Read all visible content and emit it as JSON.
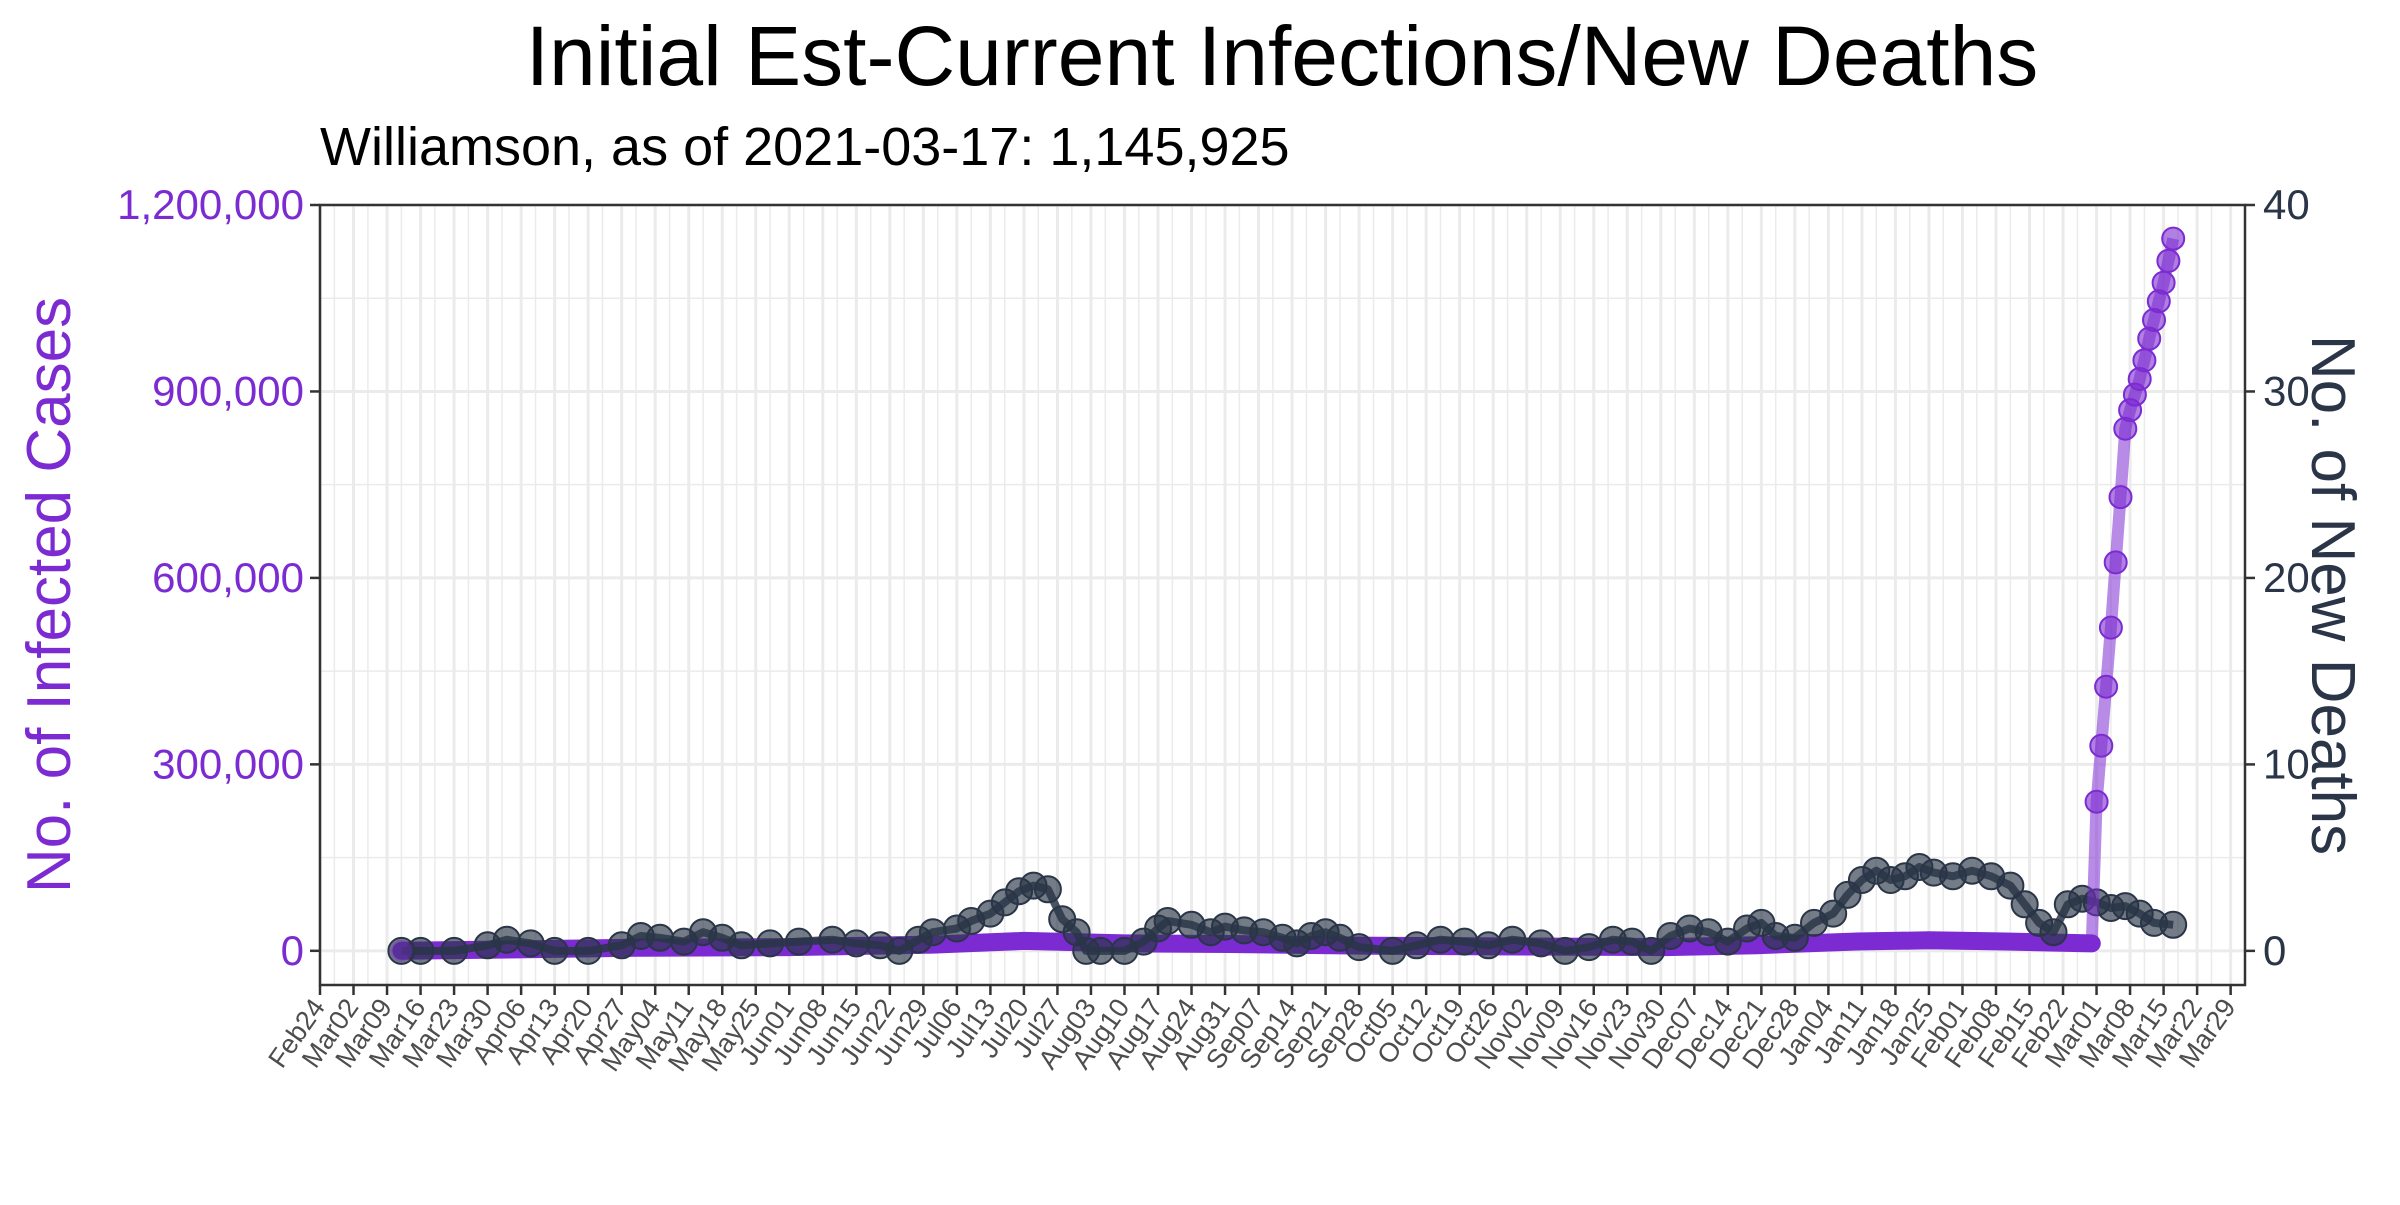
{
  "chart_data": {
    "type": "line",
    "title": "Initial Est-Current Infections/New Deaths",
    "subtitle": "Williamson, as of 2021-03-17:  1,145,925",
    "y_left_label": "No. of Infected Cases",
    "y_right_label": "No. of New Deaths",
    "y_left_ticks": [
      0,
      300000,
      600000,
      900000,
      1200000
    ],
    "y_left_tick_labels": [
      "0",
      "300,000",
      "600,000",
      "900,000",
      "1,200,000"
    ],
    "y_left_range": [
      -55000,
      1200000
    ],
    "y_right_ticks": [
      0,
      10,
      20,
      30,
      40
    ],
    "y_right_tick_labels": [
      "0",
      "10",
      "20",
      "30",
      "40"
    ],
    "y_right_range": [
      -1.83,
      40
    ],
    "x_range": [
      "2020-02-24",
      "2021-04-01"
    ],
    "x_tick_labels": [
      "Feb24",
      "Mar02",
      "Mar09",
      "Mar16",
      "Mar23",
      "Mar30",
      "Apr06",
      "Apr13",
      "Apr20",
      "Apr27",
      "May04",
      "May11",
      "May18",
      "May25",
      "Jun01",
      "Jun08",
      "Jun15",
      "Jun22",
      "Jun29",
      "Jul06",
      "Jul13",
      "Jul20",
      "Jul27",
      "Aug03",
      "Aug10",
      "Aug17",
      "Aug24",
      "Aug31",
      "Sep07",
      "Sep14",
      "Sep21",
      "Sep28",
      "Oct05",
      "Oct12",
      "Oct19",
      "Oct26",
      "Nov02",
      "Nov09",
      "Nov16",
      "Nov23",
      "Nov30",
      "Dec07",
      "Dec14",
      "Dec21",
      "Dec28",
      "Jan04",
      "Jan11",
      "Jan18",
      "Jan25",
      "Feb01",
      "Feb08",
      "Feb15",
      "Feb22",
      "Mar01",
      "Mar08",
      "Mar15",
      "Mar22",
      "Mar29"
    ],
    "x_tick_dates": [
      "2020-02-24",
      "2020-03-02",
      "2020-03-09",
      "2020-03-16",
      "2020-03-23",
      "2020-03-30",
      "2020-04-06",
      "2020-04-13",
      "2020-04-20",
      "2020-04-27",
      "2020-05-04",
      "2020-05-11",
      "2020-05-18",
      "2020-05-25",
      "2020-06-01",
      "2020-06-08",
      "2020-06-15",
      "2020-06-22",
      "2020-06-29",
      "2020-07-06",
      "2020-07-13",
      "2020-07-20",
      "2020-07-27",
      "2020-08-03",
      "2020-08-10",
      "2020-08-17",
      "2020-08-24",
      "2020-08-31",
      "2020-09-07",
      "2020-09-14",
      "2020-09-21",
      "2020-09-28",
      "2020-10-05",
      "2020-10-12",
      "2020-10-19",
      "2020-10-26",
      "2020-11-02",
      "2020-11-09",
      "2020-11-16",
      "2020-11-23",
      "2020-11-30",
      "2020-12-07",
      "2020-12-14",
      "2020-12-21",
      "2020-12-28",
      "2021-01-04",
      "2021-01-11",
      "2021-01-18",
      "2021-01-25",
      "2021-02-01",
      "2021-02-08",
      "2021-02-15",
      "2021-02-22",
      "2021-03-01",
      "2021-03-08",
      "2021-03-15",
      "2021-03-22",
      "2021-03-29"
    ],
    "grid": true,
    "colors": {
      "infections": "#7b2bd1",
      "deaths": "#2a3547",
      "axis": "#333333",
      "grid": "#ebebeb"
    },
    "series": [
      {
        "axis": "left",
        "style": "thick-line",
        "points": [
          [
            "2020-03-12",
            0
          ],
          [
            "2020-04-01",
            2000
          ],
          [
            "2020-05-01",
            5000
          ],
          [
            "2020-06-01",
            6000
          ],
          [
            "2020-07-01",
            10000
          ],
          [
            "2020-07-20",
            16000
          ],
          [
            "2020-08-10",
            12000
          ],
          [
            "2020-09-01",
            11000
          ],
          [
            "2020-10-01",
            8000
          ],
          [
            "2020-11-01",
            7000
          ],
          [
            "2020-12-01",
            6000
          ],
          [
            "2020-12-20",
            9000
          ],
          [
            "2021-01-10",
            15000
          ],
          [
            "2021-01-25",
            17000
          ],
          [
            "2021-02-10",
            15000
          ],
          [
            "2021-02-28",
            12000
          ]
        ]
      },
      {
        "axis": "left",
        "style": "line-points",
        "points": [
          [
            "2021-02-28",
            12000
          ],
          [
            "2021-03-01",
            240000
          ],
          [
            "2021-03-02",
            330000
          ],
          [
            "2021-03-03",
            425000
          ],
          [
            "2021-03-04",
            520000
          ],
          [
            "2021-03-05",
            625000
          ],
          [
            "2021-03-06",
            730000
          ],
          [
            "2021-03-07",
            840000
          ],
          [
            "2021-03-08",
            870000
          ],
          [
            "2021-03-09",
            895000
          ],
          [
            "2021-03-10",
            920000
          ],
          [
            "2021-03-11",
            950000
          ],
          [
            "2021-03-12",
            985000
          ],
          [
            "2021-03-13",
            1015000
          ],
          [
            "2021-03-14",
            1045000
          ],
          [
            "2021-03-15",
            1075000
          ],
          [
            "2021-03-16",
            1110000
          ],
          [
            "2021-03-17",
            1145925
          ]
        ]
      },
      {
        "axis": "right",
        "style": "line-points",
        "points": [
          [
            "2020-03-12",
            0
          ],
          [
            "2020-03-16",
            0
          ],
          [
            "2020-03-23",
            0
          ],
          [
            "2020-03-30",
            0.3
          ],
          [
            "2020-04-03",
            0.6
          ],
          [
            "2020-04-08",
            0.4
          ],
          [
            "2020-04-13",
            0
          ],
          [
            "2020-04-20",
            0
          ],
          [
            "2020-04-27",
            0.3
          ],
          [
            "2020-05-01",
            0.8
          ],
          [
            "2020-05-05",
            0.7
          ],
          [
            "2020-05-10",
            0.5
          ],
          [
            "2020-05-14",
            1.0
          ],
          [
            "2020-05-18",
            0.7
          ],
          [
            "2020-05-22",
            0.3
          ],
          [
            "2020-05-28",
            0.4
          ],
          [
            "2020-06-03",
            0.5
          ],
          [
            "2020-06-10",
            0.6
          ],
          [
            "2020-06-15",
            0.4
          ],
          [
            "2020-06-20",
            0.3
          ],
          [
            "2020-06-24",
            0.0
          ],
          [
            "2020-06-28",
            0.6
          ],
          [
            "2020-07-01",
            1.0
          ],
          [
            "2020-07-06",
            1.2
          ],
          [
            "2020-07-09",
            1.6
          ],
          [
            "2020-07-13",
            2.0
          ],
          [
            "2020-07-16",
            2.6
          ],
          [
            "2020-07-19",
            3.2
          ],
          [
            "2020-07-22",
            3.5
          ],
          [
            "2020-07-25",
            3.3
          ],
          [
            "2020-07-28",
            1.7
          ],
          [
            "2020-07-31",
            1.0
          ],
          [
            "2020-08-02",
            0
          ],
          [
            "2020-08-05",
            0
          ],
          [
            "2020-08-10",
            0
          ],
          [
            "2020-08-14",
            0.5
          ],
          [
            "2020-08-17",
            1.2
          ],
          [
            "2020-08-19",
            1.6
          ],
          [
            "2020-08-24",
            1.4
          ],
          [
            "2020-08-28",
            1.0
          ],
          [
            "2020-08-31",
            1.3
          ],
          [
            "2020-09-04",
            1.1
          ],
          [
            "2020-09-08",
            1.0
          ],
          [
            "2020-09-12",
            0.7
          ],
          [
            "2020-09-15",
            0.4
          ],
          [
            "2020-09-18",
            0.8
          ],
          [
            "2020-09-21",
            1.0
          ],
          [
            "2020-09-24",
            0.7
          ],
          [
            "2020-09-28",
            0.2
          ],
          [
            "2020-10-05",
            0
          ],
          [
            "2020-10-10",
            0.3
          ],
          [
            "2020-10-15",
            0.6
          ],
          [
            "2020-10-20",
            0.5
          ],
          [
            "2020-10-25",
            0.3
          ],
          [
            "2020-10-30",
            0.6
          ],
          [
            "2020-11-05",
            0.4
          ],
          [
            "2020-11-10",
            0
          ],
          [
            "2020-11-15",
            0.2
          ],
          [
            "2020-11-20",
            0.6
          ],
          [
            "2020-11-24",
            0.5
          ],
          [
            "2020-11-28",
            0.0
          ],
          [
            "2020-12-02",
            0.8
          ],
          [
            "2020-12-06",
            1.2
          ],
          [
            "2020-12-10",
            1.0
          ],
          [
            "2020-12-14",
            0.5
          ],
          [
            "2020-12-18",
            1.2
          ],
          [
            "2020-12-21",
            1.5
          ],
          [
            "2020-12-24",
            0.8
          ],
          [
            "2020-12-28",
            0.7
          ],
          [
            "2021-01-01",
            1.5
          ],
          [
            "2021-01-05",
            2.0
          ],
          [
            "2021-01-08",
            3.0
          ],
          [
            "2021-01-11",
            3.8
          ],
          [
            "2021-01-14",
            4.3
          ],
          [
            "2021-01-17",
            3.8
          ],
          [
            "2021-01-20",
            4.0
          ],
          [
            "2021-01-23",
            4.5
          ],
          [
            "2021-01-26",
            4.2
          ],
          [
            "2021-01-30",
            4.0
          ],
          [
            "2021-02-03",
            4.3
          ],
          [
            "2021-02-07",
            4.0
          ],
          [
            "2021-02-11",
            3.5
          ],
          [
            "2021-02-14",
            2.5
          ],
          [
            "2021-02-17",
            1.5
          ],
          [
            "2021-02-20",
            1.0
          ],
          [
            "2021-02-23",
            2.5
          ],
          [
            "2021-02-26",
            2.8
          ],
          [
            "2021-03-01",
            2.6
          ],
          [
            "2021-03-04",
            2.3
          ],
          [
            "2021-03-07",
            2.4
          ],
          [
            "2021-03-10",
            2.0
          ],
          [
            "2021-03-13",
            1.5
          ],
          [
            "2021-03-17",
            1.4
          ]
        ]
      }
    ]
  }
}
